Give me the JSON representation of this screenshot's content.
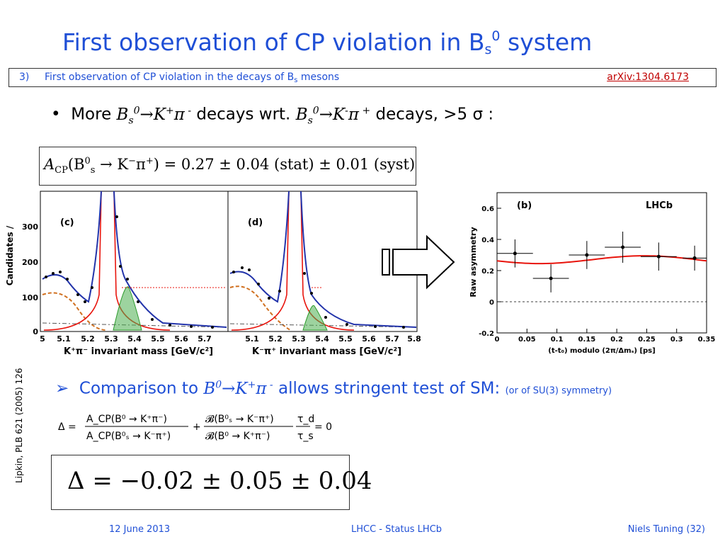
{
  "title": {
    "main": "First observation of CP violation in B",
    "sub": "s",
    "sup": "0",
    "tail": " system"
  },
  "subbar": {
    "num": "3)",
    "text": "First observation of CP violation in the decays of B",
    "sub": "s",
    "tail": " mesons",
    "ref": "arXiv:1304.6173"
  },
  "bullet": {
    "dot": "•",
    "more": "More ",
    "decays_wrt": " decays wrt. ",
    "decays_tail": " decays, >5 σ :"
  },
  "acp_formula": {
    "lhs": "A",
    "lhs_sub": "CP",
    "paren": "(B",
    "bs_sub": "s",
    "bs_sup": "0",
    "arrow": " → K",
    "km_sup": "−",
    "pi": "π",
    "pip_sup": "+",
    "rhs": ") = 0.27 ± 0.04 (stat) ± 0.01 (syst)"
  },
  "left_plot": {
    "ylabel": "Candidates /",
    "yticks": [
      "300",
      "200",
      "100",
      "0"
    ],
    "panel_c": "(c)",
    "panel_d": "(d)",
    "xticks_c": [
      "5",
      "5.1",
      "5.2",
      "5.3",
      "5.4",
      "5.5",
      "5.6",
      "5.7"
    ],
    "xticks_d": [
      "5.1",
      "5.2",
      "5.3",
      "5.4",
      "5.5",
      "5.6",
      "5.7",
      "5.8"
    ],
    "xlabel_c": "K⁺π⁻ invariant mass [GeV/c²]",
    "xlabel_d": "K⁻π⁺ invariant mass [GeV/c²]"
  },
  "chart_data": {
    "type": "scatter",
    "title": "(b)",
    "label": "LHCb",
    "xlabel": "(t-t₀) modulo (2π/Δmₛ) [ps]",
    "ylabel": "Raw asymmetry",
    "xlim": [
      0,
      0.35
    ],
    "ylim": [
      -0.2,
      0.7
    ],
    "xticks": [
      "0",
      "0.05",
      "0.1",
      "0.15",
      "0.2",
      "0.25",
      "0.3",
      "0.35"
    ],
    "yticks": [
      "-0.2",
      "0",
      "0.2",
      "0.4",
      "0.6"
    ],
    "points": [
      {
        "x": 0.03,
        "y": 0.31,
        "xerr": 0.03,
        "yerr": 0.09
      },
      {
        "x": 0.09,
        "y": 0.15,
        "xerr": 0.03,
        "yerr": 0.09
      },
      {
        "x": 0.15,
        "y": 0.3,
        "xerr": 0.03,
        "yerr": 0.09
      },
      {
        "x": 0.21,
        "y": 0.35,
        "xerr": 0.03,
        "yerr": 0.1
      },
      {
        "x": 0.27,
        "y": 0.29,
        "xerr": 0.03,
        "yerr": 0.09
      },
      {
        "x": 0.33,
        "y": 0.28,
        "xerr": 0.02,
        "yerr": 0.08
      }
    ],
    "fit": {
      "offset": 0.27,
      "amplitude": 0.025,
      "color": "#e8140c"
    }
  },
  "lipkin_ref": "Lipkin, PLB 621 (2005) 126",
  "comparison": {
    "arrow": "➢",
    "text": "Comparison to ",
    "decays": " allows stringent test of SM: ",
    "note": "(or of SU(3) symmetry)"
  },
  "delta_eq": {
    "delta": "Δ =",
    "num1": "A_CP(B⁰ → K⁺π⁻)",
    "den1": "A_CP(B⁰ₛ → K⁻π⁺)",
    "plus": "+",
    "num2": "𝓑(B⁰ₛ → K⁻π⁺)",
    "den2": "𝓑(B⁰ → K⁺π⁻)",
    "tau_d": "τ_d",
    "tau_s": "τ_s",
    "rhs": "= 0"
  },
  "delta_result": "Δ = −0.02 ± 0.05 ± 0.04",
  "footer": {
    "date": "12 June 2013",
    "center": "LHCC - Status LHCb",
    "right": "Niels Tuning (32)"
  },
  "colors": {
    "title": "#1f4fd6",
    "ref": "#c00000",
    "fit_red": "#e8140c",
    "bkg_orange": "#d07020",
    "signal_green": "#2a9a2a",
    "total_blue": "#2233aa"
  }
}
